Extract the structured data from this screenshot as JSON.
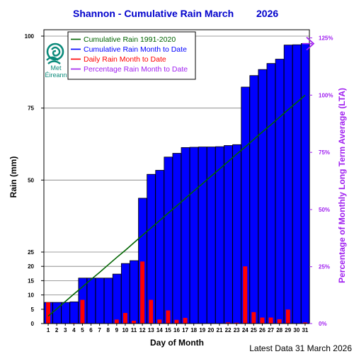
{
  "chart_data": {
    "type": "bar",
    "title": "Shannon - Cumulative Rain March",
    "year": "2026",
    "xlabel": "Day of Month",
    "ylabel": "Rain (mm)",
    "y2label": "Percentage  of Monthly Long Term Average (LTA)",
    "footer": "Latest Data 31 March 2026",
    "logo_text": [
      "Met",
      "Éireann"
    ],
    "ylim": [
      0,
      102
    ],
    "y_ticks": [
      0,
      5,
      10,
      15,
      20,
      25,
      50,
      75,
      100
    ],
    "y2_ticks": [
      "0%",
      "25%",
      "50%",
      "75%",
      "100%",
      "125%"
    ],
    "y2_tick_values": [
      0,
      25,
      50,
      75,
      100,
      125
    ],
    "lta_total_mm": 79.5,
    "x": [
      1,
      2,
      3,
      4,
      5,
      6,
      7,
      8,
      9,
      10,
      11,
      12,
      13,
      14,
      15,
      16,
      17,
      18,
      19,
      20,
      21,
      22,
      23,
      24,
      25,
      26,
      27,
      28,
      29,
      30,
      31
    ],
    "series": [
      {
        "name": "Cumulative Rain Month to Date",
        "color": "#0000ff",
        "values": [
          7.4,
          7.4,
          7.4,
          7.6,
          15.9,
          15.9,
          15.9,
          15.9,
          17.3,
          21.0,
          22.0,
          43.7,
          52.0,
          53.4,
          58.0,
          59.3,
          61.3,
          61.4,
          61.5,
          61.5,
          61.6,
          62.0,
          62.3,
          82.3,
          86.3,
          88.4,
          90.5,
          92.0,
          96.9,
          97.0,
          97.4
        ]
      },
      {
        "name": "Daily Rain Month to Date",
        "color": "#ff0000",
        "values": [
          7.4,
          0,
          0,
          0.2,
          8.3,
          0,
          0,
          0,
          1.4,
          3.7,
          1.0,
          21.7,
          8.3,
          1.4,
          4.6,
          1.3,
          2.0,
          0.1,
          0.1,
          0,
          0.1,
          0.4,
          0.3,
          20.0,
          4.0,
          2.1,
          2.1,
          1.5,
          4.9,
          0.1,
          0.4
        ]
      },
      {
        "name": "Cumulative Rain 1991-2020",
        "color": "#006400",
        "values": [
          2.6,
          5.1,
          7.7,
          10.3,
          12.8,
          15.4,
          17.9,
          20.5,
          23.1,
          25.6,
          28.2,
          30.8,
          33.3,
          35.9,
          38.5,
          41.0,
          43.6,
          46.2,
          48.7,
          51.3,
          53.8,
          56.4,
          59.0,
          61.5,
          64.1,
          66.7,
          69.2,
          71.8,
          74.4,
          76.9,
          79.5
        ]
      }
    ],
    "legend": [
      {
        "label": "Cumulative Rain 1991-2020",
        "color": "#006400"
      },
      {
        "label": "Cumulative Rain Month to Date",
        "color": "#0000ff"
      },
      {
        "label": "Daily Rain Month to Date",
        "color": "#ff0000"
      },
      {
        "label": "Percentage Rain Month to Date",
        "color": "#a020f0"
      }
    ],
    "percentage_marker": {
      "label": "Percentage Rain Month to Date",
      "value_percent": 122.5,
      "color": "#a020f0"
    }
  }
}
